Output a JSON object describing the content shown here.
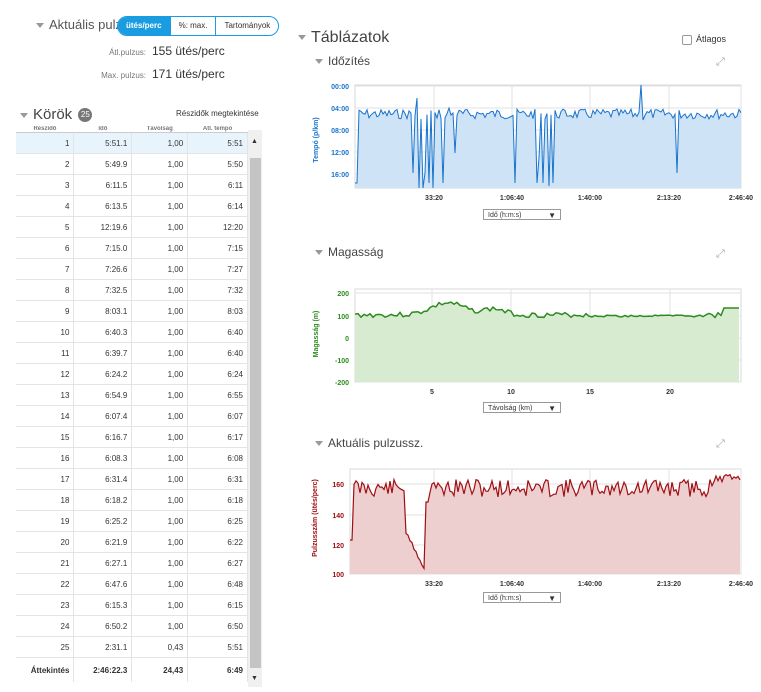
{
  "heart_rate": {
    "title": "Aktuális pulz",
    "tabs": [
      "ütés/perc",
      "%: max.",
      "Tartományok"
    ],
    "avg_label": "Átl.pulzus:",
    "avg_value": "155 ütés/perc",
    "max_label": "Max. pulzus:",
    "max_value": "171 ütés/perc"
  },
  "laps": {
    "title": "Körök",
    "count": "25",
    "split_link": "Részidők megtekintése",
    "columns": [
      "Részidő",
      "Idő",
      "Távolság",
      "Átl. tempó"
    ],
    "rows": [
      [
        "1",
        "5:51.1",
        "1,00",
        "5:51"
      ],
      [
        "2",
        "5:49.9",
        "1,00",
        "5:50"
      ],
      [
        "3",
        "6:11.5",
        "1,00",
        "6:11"
      ],
      [
        "4",
        "6:13.5",
        "1,00",
        "6:14"
      ],
      [
        "5",
        "12:19.6",
        "1,00",
        "12:20"
      ],
      [
        "6",
        "7:15.0",
        "1,00",
        "7:15"
      ],
      [
        "7",
        "7:26.6",
        "1,00",
        "7:27"
      ],
      [
        "8",
        "7:32.5",
        "1,00",
        "7:32"
      ],
      [
        "9",
        "8:03.1",
        "1,00",
        "8:03"
      ],
      [
        "10",
        "6:40.3",
        "1,00",
        "6:40"
      ],
      [
        "11",
        "6:39.7",
        "1,00",
        "6:40"
      ],
      [
        "12",
        "6:24.2",
        "1,00",
        "6:24"
      ],
      [
        "13",
        "6:54.9",
        "1,00",
        "6:55"
      ],
      [
        "14",
        "6:07.4",
        "1,00",
        "6:07"
      ],
      [
        "15",
        "6:16.7",
        "1,00",
        "6:17"
      ],
      [
        "16",
        "6:08.3",
        "1,00",
        "6:08"
      ],
      [
        "17",
        "6:31.4",
        "1,00",
        "6:31"
      ],
      [
        "18",
        "6:18.2",
        "1,00",
        "6:18"
      ],
      [
        "19",
        "6:25.2",
        "1,00",
        "6:25"
      ],
      [
        "20",
        "6:21.9",
        "1,00",
        "6:22"
      ],
      [
        "21",
        "6:27.1",
        "1,00",
        "6:27"
      ],
      [
        "22",
        "6:47.6",
        "1,00",
        "6:48"
      ],
      [
        "23",
        "6:15.3",
        "1,00",
        "6:15"
      ],
      [
        "24",
        "6:50.2",
        "1,00",
        "6:50"
      ],
      [
        "25",
        "2:31.1",
        "0,43",
        "5:51"
      ]
    ],
    "total": [
      "Áttekintés",
      "2:46:22.3",
      "24,43",
      "6:49"
    ]
  },
  "tables": {
    "title": "Táblázatok",
    "average_label": "Átlagos"
  },
  "charts": {
    "timing": {
      "title": "Időzítés",
      "ylabel": "Tempó (p/km)",
      "ticks_y": [
        "00:00",
        "04:00",
        "08:00",
        "12:00",
        "16:00"
      ],
      "ticks_x": [
        "33:20",
        "1:06:40",
        "1:40:00",
        "2:13:20",
        "2:46:40"
      ],
      "dropdown": "Idő (h:m:s)",
      "color": "#1874cd",
      "fill": "#cfe3f6"
    },
    "elevation": {
      "title": "Magasság",
      "ylabel": "Magasság (m)",
      "ticks_y": [
        "200",
        "100",
        "0",
        "-100",
        "-200"
      ],
      "ticks_x": [
        "5",
        "10",
        "15",
        "20"
      ],
      "dropdown": "Távolság (km)",
      "color": "#2e8b1f",
      "fill": "#d6ebcf"
    },
    "heart": {
      "title": "Aktuális pulzussz.",
      "ylabel": "Pulzusszám (ütés/perc)",
      "ticks_y": [
        "160",
        "140",
        "120",
        "100"
      ],
      "ticks_x": [
        "33:20",
        "1:06:40",
        "1:40:00",
        "2:13:20",
        "2:46:40"
      ],
      "dropdown": "Idő (h:m:s)",
      "color": "#a10f14",
      "fill": "#edcfcf"
    }
  }
}
